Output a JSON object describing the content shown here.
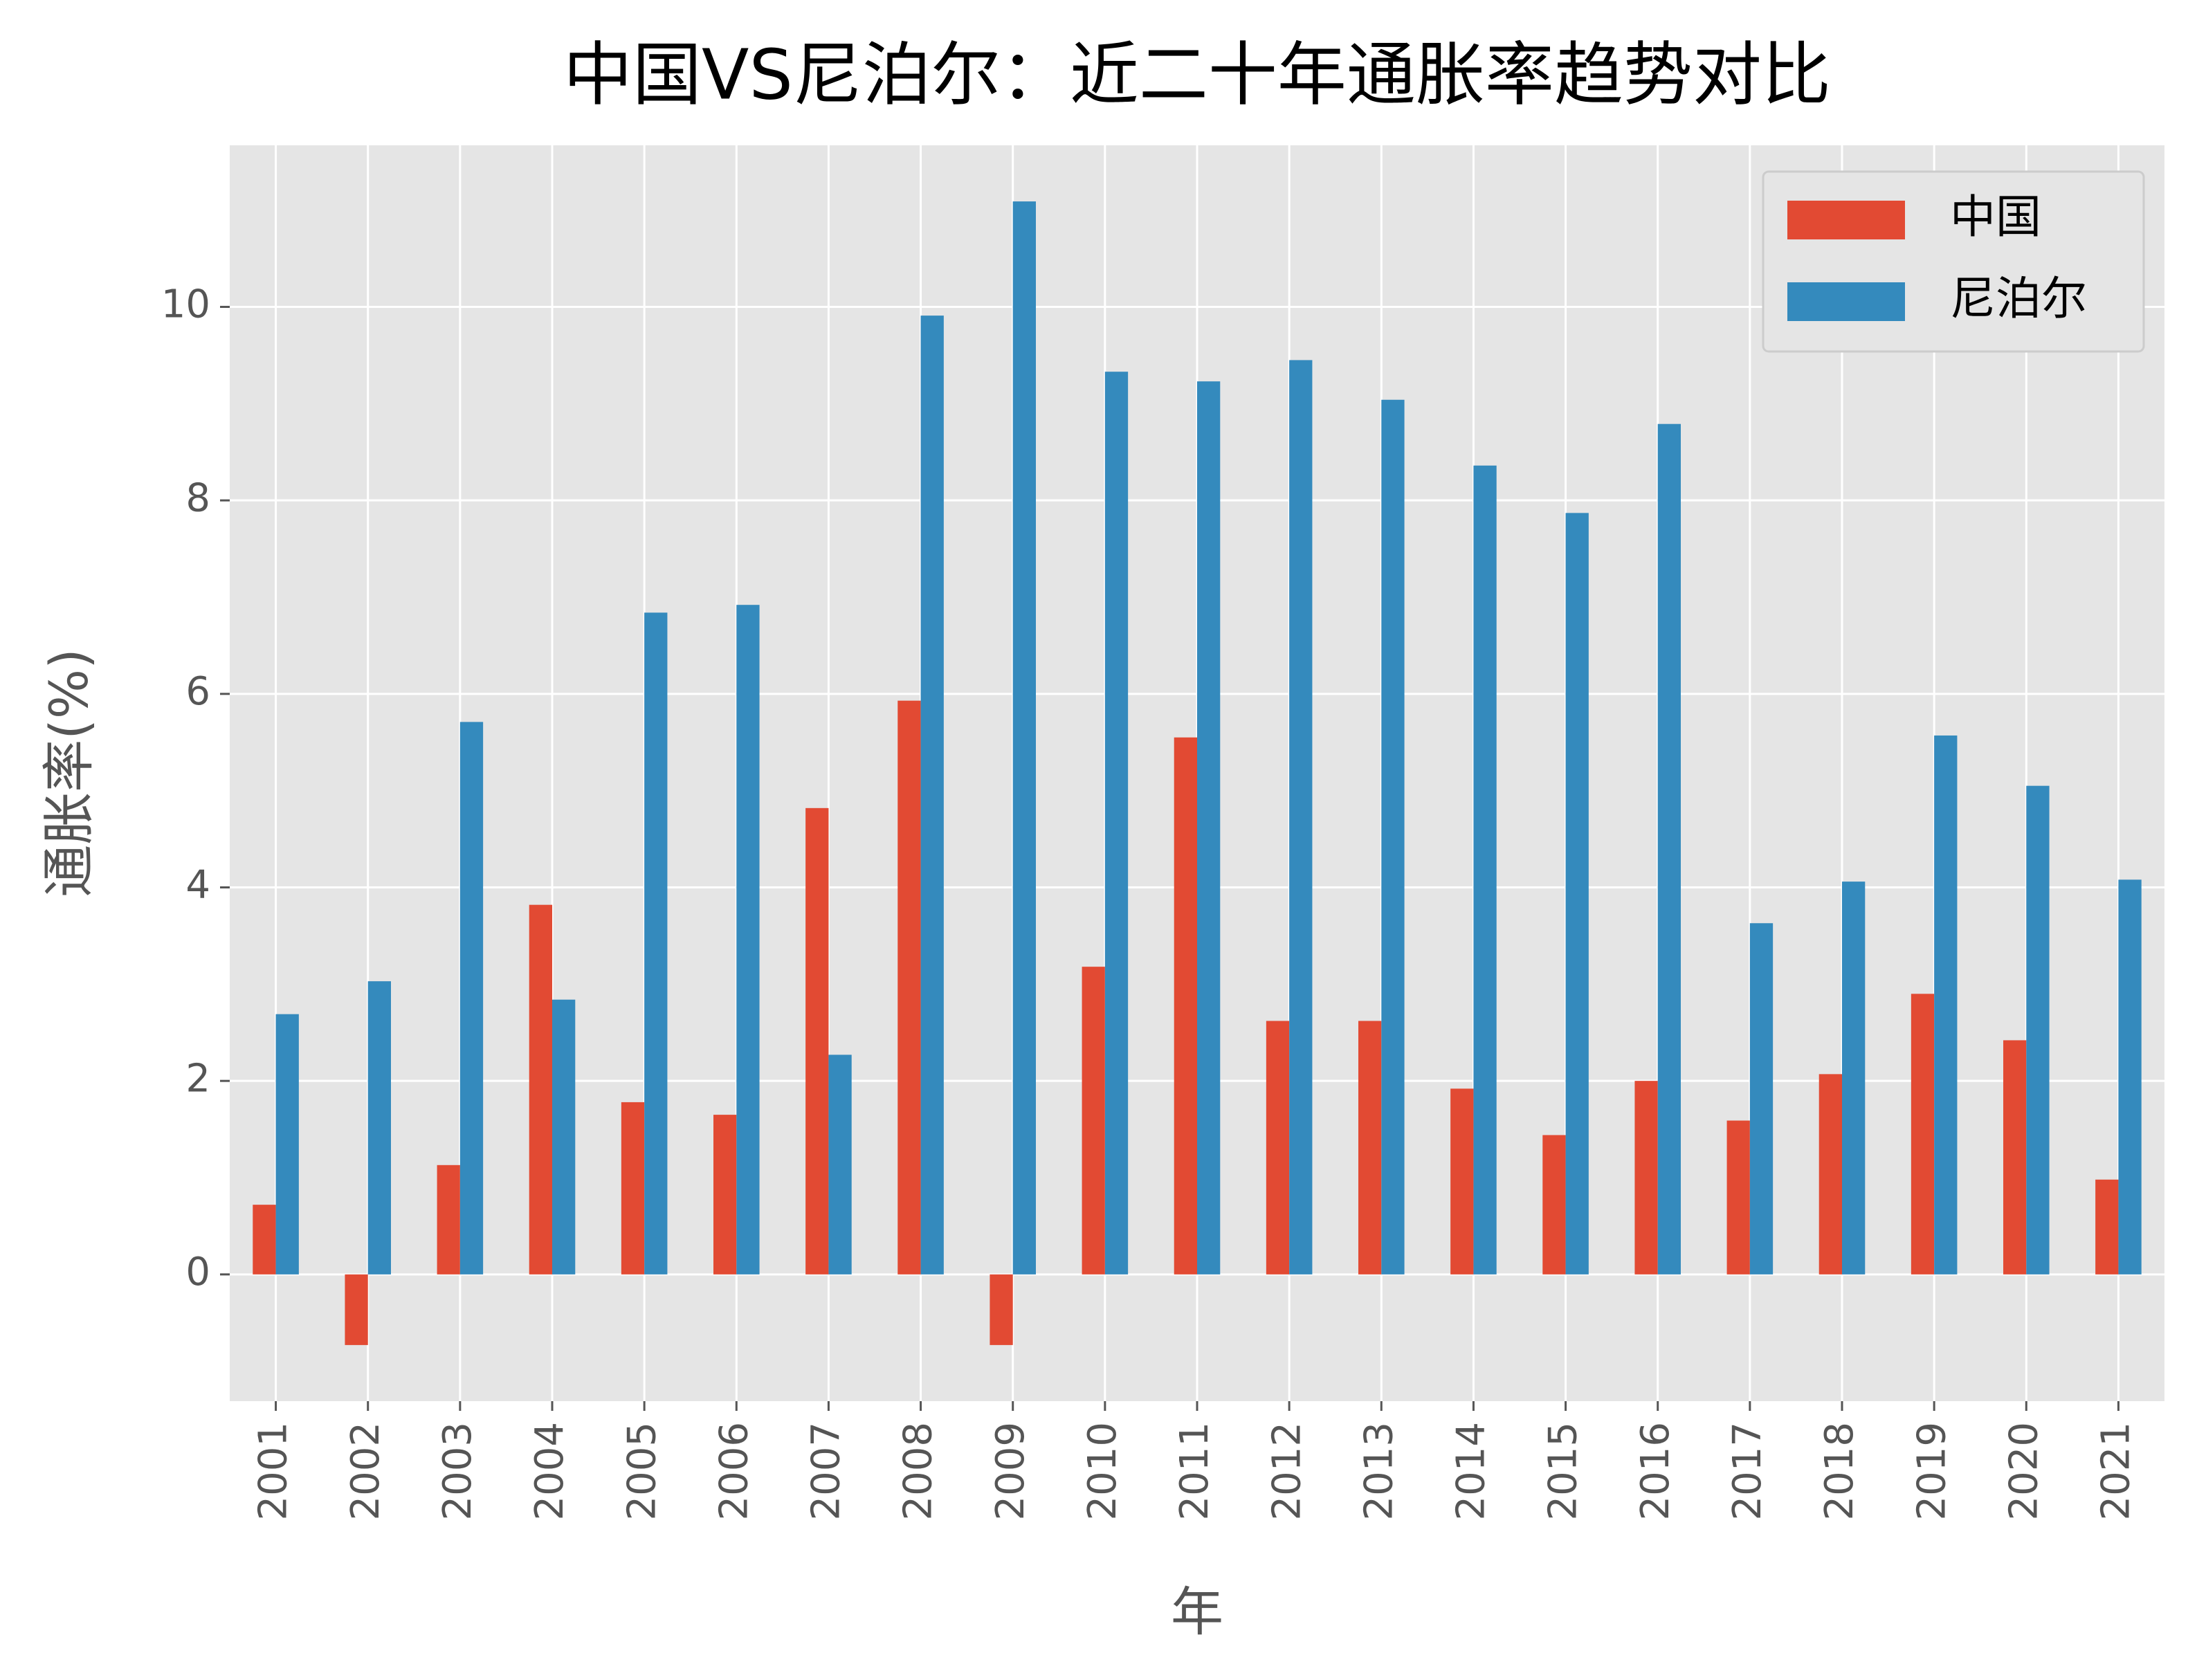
{
  "chart_data": {
    "type": "bar",
    "title": "中国VS尼泊尔：近二十年通胀率趋势对比",
    "xlabel": "年",
    "ylabel": "通胀率(%)",
    "categories": [
      "2001",
      "2002",
      "2003",
      "2004",
      "2005",
      "2006",
      "2007",
      "2008",
      "2009",
      "2010",
      "2011",
      "2012",
      "2013",
      "2014",
      "2015",
      "2016",
      "2017",
      "2018",
      "2019",
      "2020",
      "2021"
    ],
    "series": [
      {
        "name": "中国",
        "color": "#E24A33",
        "values": [
          0.72,
          -0.73,
          1.13,
          3.82,
          1.78,
          1.65,
          4.82,
          5.93,
          -0.73,
          3.18,
          5.55,
          2.62,
          2.62,
          1.92,
          1.44,
          2.0,
          1.59,
          2.07,
          2.9,
          2.42,
          0.98
        ]
      },
      {
        "name": "尼泊尔",
        "color": "#348ABD",
        "values": [
          2.69,
          3.03,
          5.71,
          2.84,
          6.84,
          6.92,
          2.27,
          9.91,
          11.09,
          9.33,
          9.23,
          9.45,
          9.04,
          8.36,
          7.87,
          8.79,
          3.63,
          4.06,
          5.57,
          5.05,
          4.08
        ]
      }
    ],
    "ylim": [
      -1.31,
      11.67
    ],
    "yticks": [
      0,
      2,
      4,
      6,
      8,
      10
    ],
    "grid": true,
    "legend": "upper right"
  }
}
